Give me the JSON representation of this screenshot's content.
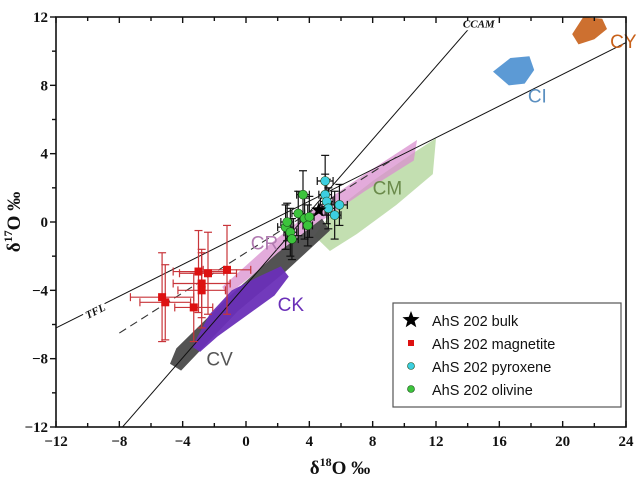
{
  "chart_data": {
    "type": "scatter",
    "title": "",
    "xlabel": {
      "base": "δ",
      "sup": "18",
      "rest": "O ‰"
    },
    "ylabel": {
      "base": "δ",
      "sup": "17",
      "rest": "O ‰"
    },
    "xlim": [
      -12,
      24
    ],
    "ylim": [
      -12,
      12
    ],
    "xticks": [
      -12,
      -8,
      -4,
      0,
      4,
      8,
      12,
      16,
      20,
      24
    ],
    "yticks": [
      -12,
      -8,
      -4,
      0,
      4,
      8,
      12
    ],
    "grid": false,
    "legend_position": "bottom-right",
    "reference_lines": [
      {
        "name": "TFL",
        "label": "TFL",
        "style": "solid",
        "points": [
          [
            -12,
            -6.2
          ],
          [
            24,
            10.5
          ]
        ]
      },
      {
        "name": "CCAM",
        "label": "CCAM",
        "style": "solid",
        "points": [
          [
            -7.8,
            -12
          ],
          [
            15.0,
            12.3
          ]
        ]
      },
      {
        "name": "dashed-trend",
        "label": "",
        "style": "dashed",
        "points": [
          [
            -8,
            -6.5
          ],
          [
            9.5,
            3.8
          ]
        ]
      }
    ],
    "fields": [
      {
        "name": "CY",
        "color": "#c8611a",
        "label_color": "#c8611a",
        "polygon": [
          [
            20.6,
            11.0
          ],
          [
            21.3,
            12.0
          ],
          [
            22.5,
            11.9
          ],
          [
            22.8,
            11.3
          ],
          [
            22.0,
            10.7
          ],
          [
            21.0,
            10.4
          ]
        ],
        "label_at": [
          23.0,
          10.2
        ]
      },
      {
        "name": "CI",
        "color": "#4a8fd0",
        "label_color": "#5a8fc0",
        "polygon": [
          [
            15.6,
            8.8
          ],
          [
            16.7,
            9.6
          ],
          [
            17.9,
            9.7
          ],
          [
            18.2,
            8.9
          ],
          [
            17.6,
            8.1
          ],
          [
            16.6,
            8.0
          ]
        ],
        "label_at": [
          17.8,
          7.0
        ]
      },
      {
        "name": "CM",
        "color": "#b9d9a3",
        "label_color": "#6a8a4a",
        "polygon": [
          [
            4.3,
            -0.8
          ],
          [
            5.5,
            0.6
          ],
          [
            8.0,
            2.4
          ],
          [
            10.5,
            4.0
          ],
          [
            12.0,
            4.9
          ],
          [
            11.8,
            2.8
          ],
          [
            9.5,
            1.0
          ],
          [
            7.0,
            -0.7
          ],
          [
            5.3,
            -1.7
          ]
        ],
        "label_at": [
          8.0,
          1.6
        ]
      },
      {
        "name": "CR",
        "color": "#d98fcf",
        "label_color": "#b07ab0",
        "polygon": [
          [
            -1.5,
            -3.8
          ],
          [
            1.5,
            -1.3
          ],
          [
            4.5,
            0.9
          ],
          [
            7.5,
            2.8
          ],
          [
            10.8,
            4.8
          ],
          [
            10.6,
            3.6
          ],
          [
            7.5,
            1.8
          ],
          [
            4.5,
            -0.1
          ],
          [
            1.8,
            -2.1
          ],
          [
            -1.2,
            -4.3
          ]
        ],
        "label_at": [
          0.3,
          -1.6
        ]
      },
      {
        "name": "CK",
        "color": "#6a2fb8",
        "label_color": "#6a2fb8",
        "polygon": [
          [
            -3.4,
            -7.3
          ],
          [
            -2.3,
            -5.4
          ],
          [
            -0.9,
            -4.0
          ],
          [
            0.8,
            -3.2
          ],
          [
            2.2,
            -2.6
          ],
          [
            2.7,
            -3.2
          ],
          [
            1.8,
            -4.3
          ],
          [
            0.0,
            -5.5
          ],
          [
            -1.8,
            -6.7
          ],
          [
            -2.9,
            -7.6
          ]
        ],
        "label_at": [
          2.0,
          -5.2
        ]
      },
      {
        "name": "CV",
        "color": "#4a4a4a",
        "label_color": "#555555",
        "polygon": [
          [
            -4.8,
            -8.3
          ],
          [
            -4.4,
            -7.4
          ],
          [
            -1.0,
            -4.3
          ],
          [
            2.0,
            -1.8
          ],
          [
            4.8,
            0.2
          ],
          [
            5.3,
            -0.5
          ],
          [
            2.5,
            -2.9
          ],
          [
            -0.5,
            -5.2
          ],
          [
            -4.1,
            -8.7
          ]
        ],
        "label_at": [
          -2.5,
          -8.4
        ]
      }
    ],
    "series": [
      {
        "name": "AhS 202 bulk",
        "marker": "star",
        "color": "#000000",
        "points": [
          {
            "x": 4.6,
            "y": 0.7
          }
        ]
      },
      {
        "name": "AhS 202 magnetite",
        "marker": "square",
        "color": "#dd1111",
        "error_color": "#c8353a",
        "points": [
          {
            "x": -5.3,
            "y": -4.4,
            "xerr": 2.0,
            "yerr": 2.6
          },
          {
            "x": -5.1,
            "y": -4.7,
            "xerr": 1.6,
            "yerr": 2.2
          },
          {
            "x": -3.0,
            "y": -2.9,
            "xerr": 1.6,
            "yerr": 2.4
          },
          {
            "x": -2.4,
            "y": -3.0,
            "xerr": 1.8,
            "yerr": 2.4
          },
          {
            "x": -2.8,
            "y": -3.6,
            "xerr": 1.8,
            "yerr": 2.0
          },
          {
            "x": -2.8,
            "y": -4.0,
            "xerr": 1.5,
            "yerr": 2.2
          },
          {
            "x": -1.2,
            "y": -2.8,
            "xerr": 1.5,
            "yerr": 2.6
          },
          {
            "x": -3.3,
            "y": -5.0,
            "xerr": 1.2,
            "yerr": 2.0
          }
        ]
      },
      {
        "name": "AhS 202 pyroxene",
        "marker": "circle",
        "color": "#3ccfe0",
        "error_color": "#111111",
        "points": [
          {
            "x": 5.0,
            "y": 2.4,
            "xerr": 0.5,
            "yerr": 1.5
          },
          {
            "x": 5.0,
            "y": 1.6,
            "xerr": 0.4,
            "yerr": 1.2
          },
          {
            "x": 5.1,
            "y": 1.2,
            "xerr": 0.4,
            "yerr": 1.3
          },
          {
            "x": 5.2,
            "y": 0.8,
            "xerr": 0.4,
            "yerr": 1.2
          },
          {
            "x": 5.9,
            "y": 1.0,
            "xerr": 0.5,
            "yerr": 1.2
          },
          {
            "x": 5.6,
            "y": 0.4,
            "xerr": 0.4,
            "yerr": 1.4
          }
        ]
      },
      {
        "name": "AhS 202 olivine",
        "marker": "circle",
        "color": "#3cc43c",
        "error_color": "#111111",
        "points": [
          {
            "x": 3.6,
            "y": 1.6,
            "xerr": 0.4,
            "yerr": 1.4
          },
          {
            "x": 3.3,
            "y": 0.5,
            "xerr": 0.4,
            "yerr": 1.3
          },
          {
            "x": 3.7,
            "y": 0.2,
            "xerr": 0.3,
            "yerr": 1.2
          },
          {
            "x": 4.0,
            "y": 0.3,
            "xerr": 0.3,
            "yerr": 1.2
          },
          {
            "x": 3.9,
            "y": -0.2,
            "xerr": 0.3,
            "yerr": 1.2
          },
          {
            "x": 2.5,
            "y": -0.3,
            "xerr": 0.5,
            "yerr": 1.3
          },
          {
            "x": 2.8,
            "y": -0.6,
            "xerr": 0.4,
            "yerr": 1.4
          },
          {
            "x": 2.9,
            "y": -1.0,
            "xerr": 0.4,
            "yerr": 1.2
          },
          {
            "x": 2.6,
            "y": 0.0,
            "xerr": 0.4,
            "yerr": 1.1
          }
        ]
      }
    ]
  }
}
